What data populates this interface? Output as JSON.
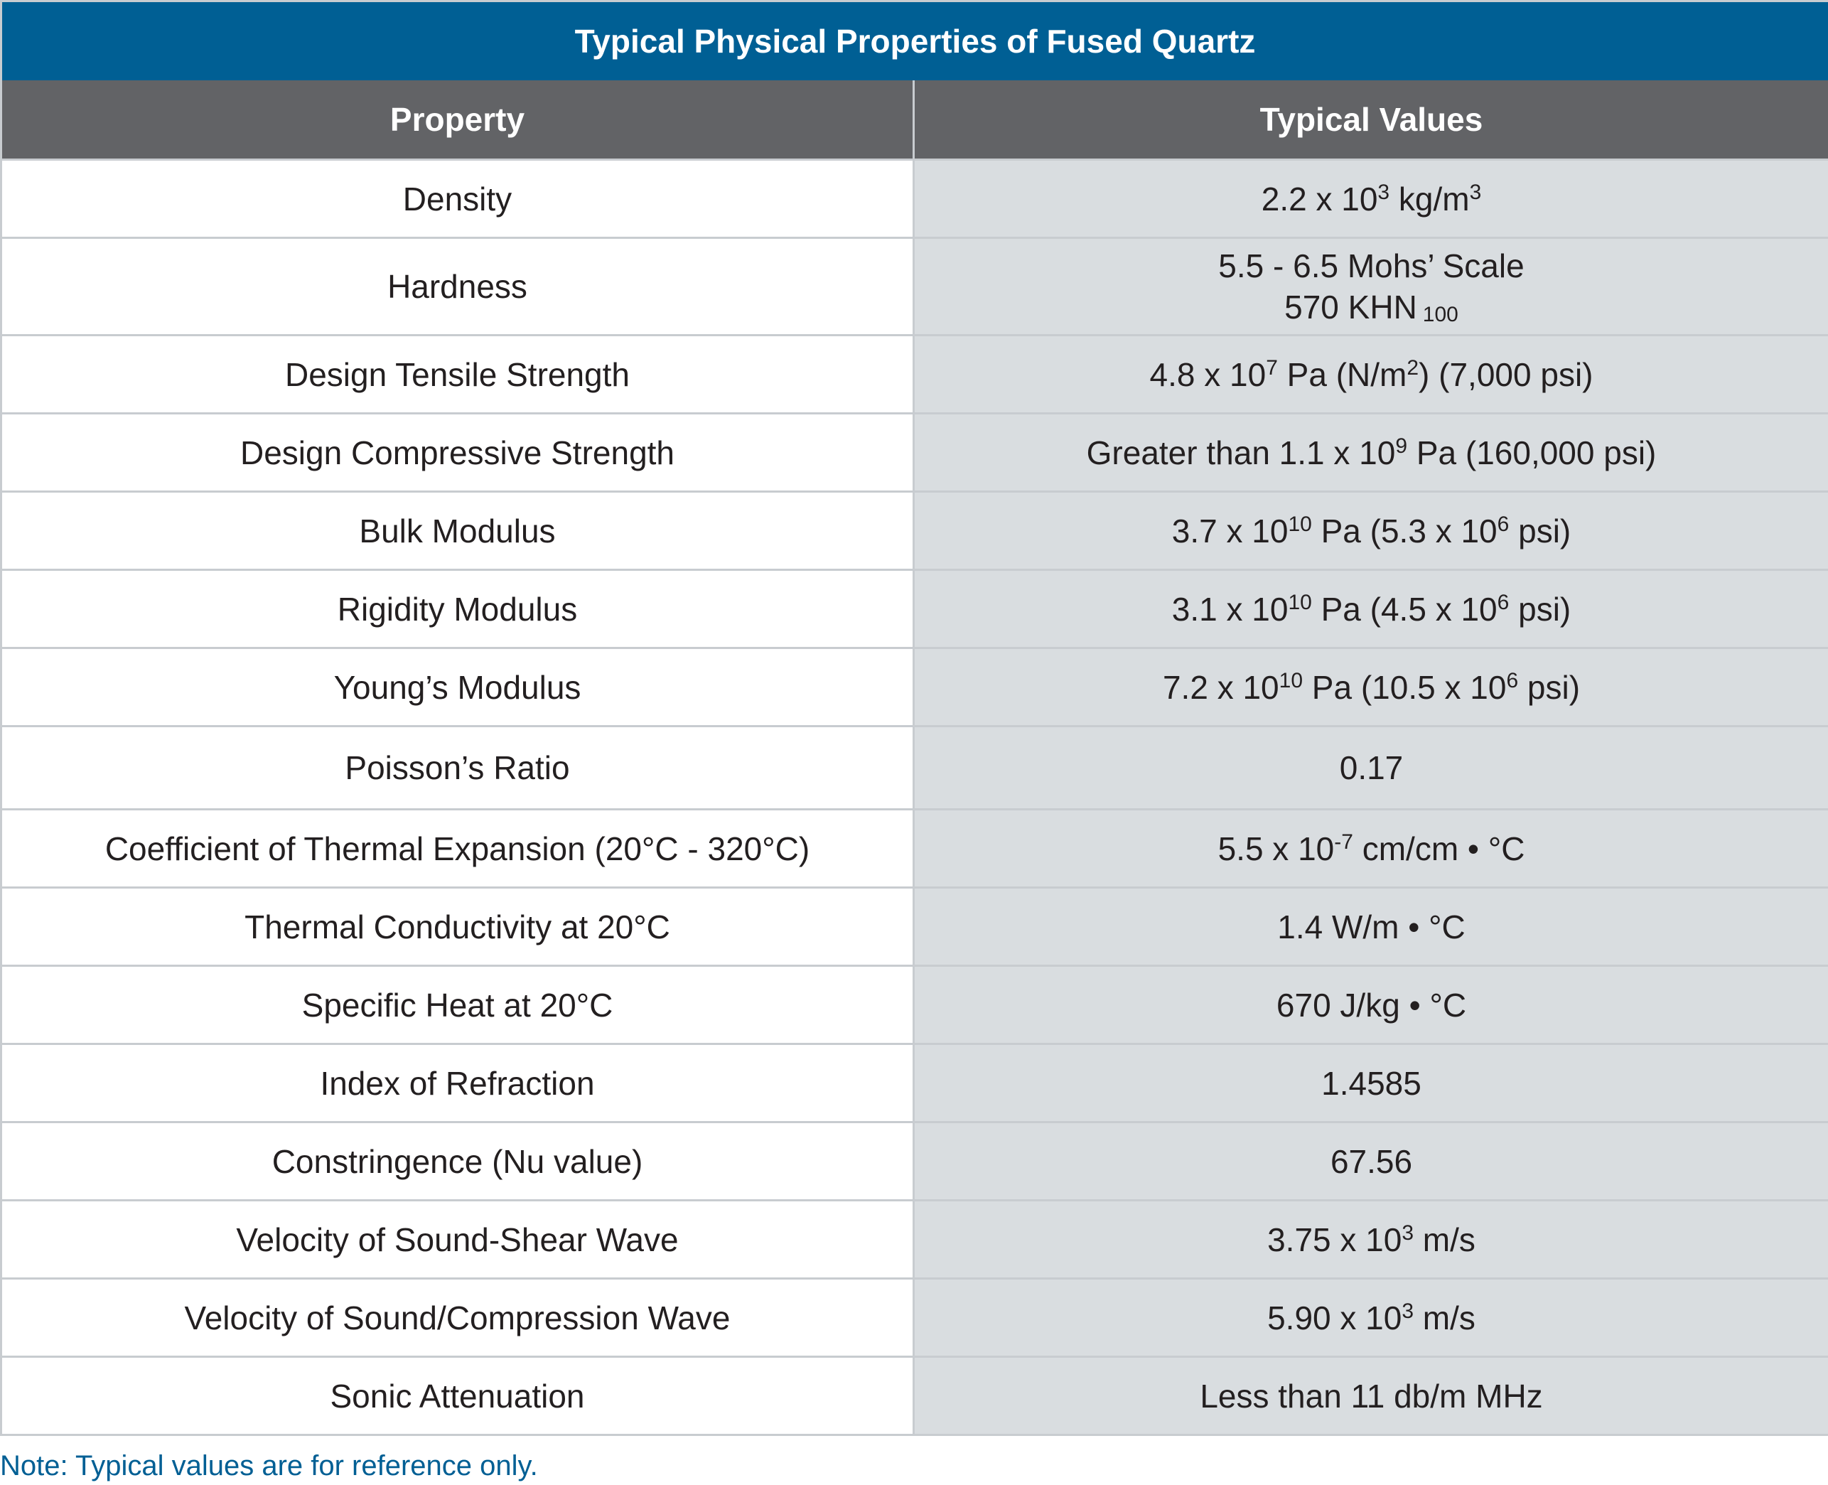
{
  "title": "Typical Physical Properties of Fused Quartz",
  "columns": [
    "Property",
    "Typical Values"
  ],
  "colors": {
    "title_bg": "#005f94",
    "header_bg": "#626366",
    "value_column_bg": "#d9dde0",
    "grid": "#c8ccd0",
    "note_text": "#005f94"
  },
  "rows": [
    {
      "property": "Density",
      "value": [
        {
          "t": "2.2 x 10"
        },
        {
          "sup": "3"
        },
        {
          "t": " kg/m"
        },
        {
          "sup": "3"
        }
      ]
    },
    {
      "property": "Hardness",
      "value": [
        {
          "t": "5.5 - 6.5 Mohs’ Scale"
        },
        {
          "br": true
        },
        {
          "t": "570 KHN"
        },
        {
          "sub": "100"
        }
      ]
    },
    {
      "property": "Design Tensile Strength",
      "value": [
        {
          "t": "4.8 x 10"
        },
        {
          "sup": "7"
        },
        {
          "t": " Pa (N/m"
        },
        {
          "sup": "2"
        },
        {
          "t": ") (7,000 psi)"
        }
      ]
    },
    {
      "property": "Design Compressive Strength",
      "value": [
        {
          "t": "Greater than 1.1 x 10"
        },
        {
          "sup": "9"
        },
        {
          "t": " Pa (160,000 psi)"
        }
      ]
    },
    {
      "property": "Bulk Modulus",
      "value": [
        {
          "t": "3.7 x 10"
        },
        {
          "sup": "10"
        },
        {
          "t": " Pa (5.3 x 10"
        },
        {
          "sup": "6"
        },
        {
          "t": " psi)"
        }
      ]
    },
    {
      "property": "Rigidity Modulus",
      "value": [
        {
          "t": "3.1 x 10"
        },
        {
          "sup": "10"
        },
        {
          "t": " Pa (4.5 x 10"
        },
        {
          "sup": "6"
        },
        {
          "t": " psi)"
        }
      ]
    },
    {
      "property": "Young’s Modulus",
      "value": [
        {
          "t": "7.2 x 10"
        },
        {
          "sup": "10"
        },
        {
          "t": " Pa (10.5 x 10"
        },
        {
          "sup": "6"
        },
        {
          "t": " psi)"
        }
      ]
    },
    {
      "property": "Poisson’s Ratio",
      "value": [
        {
          "t": "0.17"
        }
      ]
    },
    {
      "property": "Coefficient of Thermal Expansion (20°C - 320°C)",
      "value": [
        {
          "t": "5.5 x 10"
        },
        {
          "sup": "-7"
        },
        {
          "t": " cm/cm • °C"
        }
      ]
    },
    {
      "property": "Thermal Conductivity at 20°C",
      "value": [
        {
          "t": "1.4 W/m • °C"
        }
      ]
    },
    {
      "property": "Specific Heat at 20°C",
      "value": [
        {
          "t": "670 J/kg • °C"
        }
      ]
    },
    {
      "property": "Index of Refraction",
      "value": [
        {
          "t": "1.4585"
        }
      ]
    },
    {
      "property": "Constringence (Nu value)",
      "value": [
        {
          "t": "67.56"
        }
      ]
    },
    {
      "property": "Velocity of Sound-Shear Wave",
      "value": [
        {
          "t": "3.75 x 10"
        },
        {
          "sup": "3"
        },
        {
          "t": " m/s"
        }
      ]
    },
    {
      "property": "Velocity of Sound/Compression Wave",
      "value": [
        {
          "t": "5.90 x 10"
        },
        {
          "sup": "3"
        },
        {
          "t": " m/s"
        }
      ]
    },
    {
      "property": "Sonic Attenuation",
      "value": [
        {
          "t": "Less than 11 db/m MHz"
        }
      ]
    }
  ],
  "note": "Note: Typical values are for reference only."
}
